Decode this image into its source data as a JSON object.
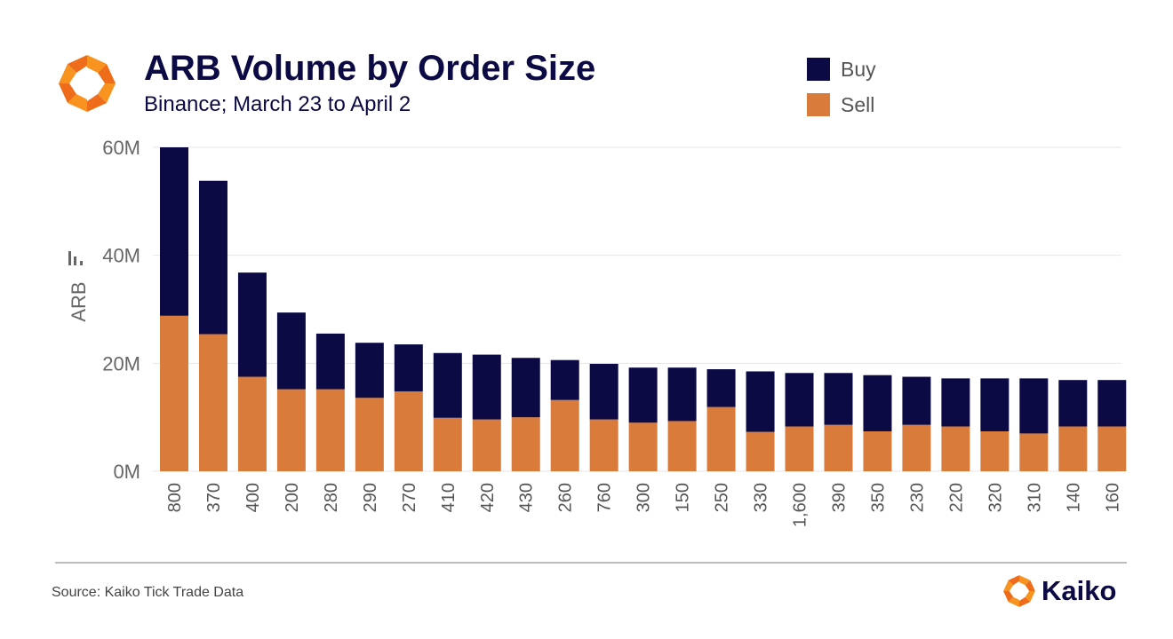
{
  "header": {
    "title": "ARB Volume by Order Size",
    "subtitle": "Binance; March 23 to April 2",
    "logo_icon": "kaiko-logo-icon"
  },
  "legend": [
    {
      "label": "Buy",
      "color": "#0b0a45"
    },
    {
      "label": "Sell",
      "color": "#d97b3a"
    }
  ],
  "footer": {
    "source": "Source: Kaiko Tick Trade Data",
    "brand": "Kaiko"
  },
  "colors": {
    "buy": "#0b0a45",
    "sell": "#d97b3a",
    "logo_orange": "#f7931e",
    "logo_orange_dark": "#ef6c1a"
  },
  "chart_data": {
    "type": "bar",
    "stacked": true,
    "ylabel": "ARB",
    "ylim": [
      0,
      60000000
    ],
    "yticks": [
      {
        "value": 0,
        "label": "0M"
      },
      {
        "value": 20000000,
        "label": "20M"
      },
      {
        "value": 40000000,
        "label": "40M"
      },
      {
        "value": 60000000,
        "label": "60M"
      }
    ],
    "grid": true,
    "legend_position": "top-right",
    "categories": [
      "800",
      "370",
      "400",
      "200",
      "280",
      "290",
      "270",
      "410",
      "420",
      "430",
      "260",
      "760",
      "300",
      "150",
      "250",
      "330",
      "1,600",
      "390",
      "350",
      "230",
      "220",
      "320",
      "310",
      "140",
      "160"
    ],
    "series": [
      {
        "name": "Sell",
        "values": [
          28.8,
          25.4,
          17.5,
          15.2,
          15.2,
          13.6,
          14.8,
          9.9,
          9.6,
          10.0,
          13.2,
          9.6,
          9.0,
          9.3,
          11.9,
          7.3,
          8.3,
          8.6,
          7.4,
          8.6,
          8.3,
          7.4,
          7.0,
          8.3,
          8.3
        ]
      },
      {
        "name": "Buy",
        "values": [
          31.2,
          28.4,
          19.3,
          14.2,
          10.3,
          10.2,
          8.7,
          12.0,
          12.0,
          11.0,
          7.4,
          10.3,
          10.2,
          9.9,
          7.0,
          11.2,
          9.9,
          9.6,
          10.4,
          8.9,
          8.9,
          9.8,
          10.2,
          8.6,
          8.6
        ]
      }
    ],
    "units": "millions"
  }
}
